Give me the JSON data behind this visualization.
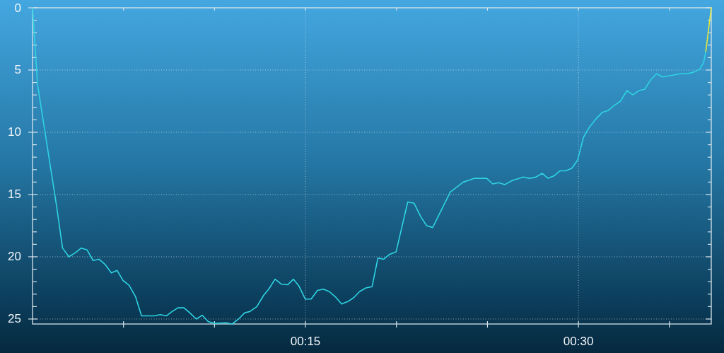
{
  "chart_data": {
    "type": "line",
    "series": [
      {
        "color": "#2fd3e2",
        "x": [
          0,
          0.28,
          1.32,
          1.65,
          2.0,
          2.33,
          2.68,
          3.0,
          3.33,
          3.65,
          3.98,
          4.33,
          4.65,
          4.97,
          5.31,
          5.66,
          5.99,
          6.7,
          7.02,
          7.35,
          7.67,
          7.99,
          8.32,
          8.64,
          9.0,
          9.33,
          9.65,
          10.0,
          10.65,
          10.97,
          11.32,
          11.66,
          11.94,
          12.33,
          12.7,
          12.98,
          13.33,
          13.67,
          14.02,
          14.34,
          14.64,
          14.99,
          15.31,
          15.66,
          15.99,
          16.31,
          16.63,
          16.99,
          17.32,
          17.64,
          17.97,
          18.32,
          18.66,
          18.98,
          19.3,
          19.63,
          19.98,
          20.62,
          20.97,
          21.34,
          21.66,
          21.99,
          22.96,
          23.32,
          23.67,
          23.99,
          24.28,
          24.96,
          25.29,
          25.61,
          25.96,
          26.39,
          26.65,
          26.97,
          27.29,
          27.66,
          28.01,
          28.33,
          28.66,
          28.98,
          29.3,
          29.63,
          29.95,
          30.28,
          30.6,
          30.92,
          31.31,
          31.64,
          31.96,
          32.31,
          32.67,
          32.99,
          33.32,
          33.64,
          33.99,
          34.29,
          34.62,
          35.26,
          35.59,
          35.98,
          36.37,
          36.66,
          36.88,
          37.0
        ],
        "values": [
          0,
          6.2,
          15.9,
          19.3,
          20.0,
          19.7,
          19.3,
          19.45,
          20.3,
          20.2,
          20.6,
          21.3,
          21.1,
          21.9,
          22.3,
          23.2,
          24.75,
          24.75,
          24.65,
          24.75,
          24.4,
          24.1,
          24.1,
          24.5,
          25.0,
          24.7,
          25.2,
          25.35,
          25.3,
          25.4,
          25.0,
          24.5,
          24.4,
          24.0,
          23.1,
          22.6,
          21.8,
          22.2,
          22.25,
          21.8,
          22.35,
          23.4,
          23.4,
          22.7,
          22.6,
          22.8,
          23.2,
          23.8,
          23.6,
          23.3,
          22.8,
          22.5,
          22.4,
          20.1,
          20.2,
          19.8,
          19.6,
          15.6,
          15.7,
          16.8,
          17.5,
          17.65,
          14.8,
          14.4,
          14.0,
          13.85,
          13.7,
          13.7,
          14.15,
          14.05,
          14.2,
          13.85,
          13.75,
          13.6,
          13.7,
          13.6,
          13.3,
          13.7,
          13.5,
          13.1,
          13.1,
          12.9,
          12.25,
          10.4,
          9.6,
          9.0,
          8.4,
          8.25,
          7.85,
          7.5,
          6.65,
          7.0,
          6.65,
          6.55,
          5.75,
          5.3,
          5.55,
          5.4,
          5.3,
          5.3,
          5.15,
          4.95,
          4.4,
          3.5
        ]
      },
      {
        "color": "#e4e83c",
        "x": [
          37.0,
          37.3
        ],
        "values": [
          3.5,
          0
        ]
      }
    ],
    "xlim": [
      0,
      37.3
    ],
    "xticks": [
      {
        "value": 5,
        "label": null
      },
      {
        "value": 10,
        "label": null
      },
      {
        "value": 15,
        "label": "00:15"
      },
      {
        "value": 20,
        "label": null
      },
      {
        "value": 25,
        "label": null
      },
      {
        "value": 30,
        "label": "00:30"
      },
      {
        "value": 35,
        "label": null
      }
    ],
    "ylim": [
      25.4,
      0
    ],
    "yticks": [
      0,
      {
        "value": 1,
        "label": null
      },
      {
        "value": 2,
        "label": null
      },
      {
        "value": 3,
        "label": null
      },
      {
        "value": 4,
        "label": null
      },
      5,
      {
        "value": 6,
        "label": null
      },
      {
        "value": 7,
        "label": null
      },
      {
        "value": 8,
        "label": null
      },
      {
        "value": 9,
        "label": null
      },
      10,
      {
        "value": 11,
        "label": null
      },
      {
        "value": 12,
        "label": null
      },
      {
        "value": 13,
        "label": null
      },
      {
        "value": 14,
        "label": null
      },
      15,
      {
        "value": 16,
        "label": null
      },
      {
        "value": 17,
        "label": null
      },
      {
        "value": 18,
        "label": null
      },
      {
        "value": 19,
        "label": null
      },
      20,
      {
        "value": 21,
        "label": null
      },
      {
        "value": 22,
        "label": null
      },
      {
        "value": 23,
        "label": null
      },
      {
        "value": 24,
        "label": null
      },
      25
    ],
    "grid": true
  }
}
